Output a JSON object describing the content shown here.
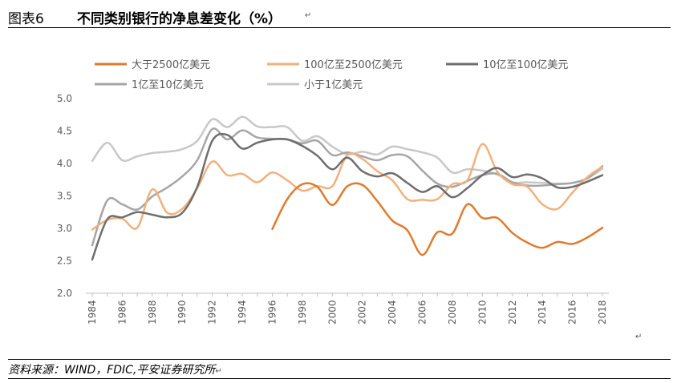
{
  "figure": {
    "label": "图表6",
    "title": "不同类别银行的净息差变化（%）",
    "source": "资料来源：WIND，FDIC,平安证券研究所",
    "para_mark": "↵"
  },
  "chart_data": {
    "type": "line",
    "title": "不同类别银行的净息差变化（%）",
    "xlabel": "",
    "ylabel": "",
    "xlim": [
      1984,
      2018
    ],
    "ylim": [
      2.0,
      5.0
    ],
    "yticks": [
      "2.0",
      "2.5",
      "3.0",
      "3.5",
      "4.0",
      "4.5",
      "5.0"
    ],
    "xticks": [
      "1984",
      "1986",
      "1988",
      "1990",
      "1992",
      "1994",
      "1996",
      "1998",
      "2000",
      "2002",
      "2004",
      "2006",
      "2008",
      "2010",
      "2012",
      "2014",
      "2016",
      "2018"
    ],
    "grid": false,
    "legend_position": "top",
    "series": [
      {
        "name": "大于2500亿美元",
        "color": "#E07B2E",
        "x": [
          1996,
          1997,
          1998,
          1999,
          2000,
          2001,
          2002,
          2003,
          2004,
          2005,
          2006,
          2007,
          2008,
          2009,
          2010,
          2011,
          2012,
          2013,
          2014,
          2015,
          2016,
          2017,
          2018
        ],
        "values": [
          2.99,
          3.45,
          3.68,
          3.64,
          3.36,
          3.65,
          3.67,
          3.42,
          3.12,
          2.97,
          2.59,
          2.94,
          2.92,
          3.37,
          3.16,
          3.16,
          2.93,
          2.78,
          2.7,
          2.79,
          2.76,
          2.86,
          3.01
        ]
      },
      {
        "name": "100亿至2500亿美元",
        "color": "#F2B07E",
        "x": [
          1984,
          1985,
          1986,
          1987,
          1988,
          1989,
          1990,
          1991,
          1992,
          1993,
          1994,
          1995,
          1996,
          1997,
          1998,
          1999,
          2000,
          2001,
          2002,
          2003,
          2004,
          2005,
          2006,
          2007,
          2008,
          2009,
          2010,
          2011,
          2012,
          2013,
          2014,
          2015,
          2016,
          2017,
          2018
        ],
        "values": [
          2.98,
          3.13,
          3.15,
          3.01,
          3.6,
          3.24,
          3.3,
          3.62,
          4.03,
          3.82,
          3.84,
          3.71,
          3.86,
          3.74,
          3.58,
          3.65,
          3.65,
          4.13,
          4.07,
          3.88,
          3.74,
          3.45,
          3.44,
          3.45,
          3.68,
          3.74,
          4.3,
          3.87,
          3.68,
          3.64,
          3.37,
          3.3,
          3.55,
          3.79,
          3.95
        ]
      },
      {
        "name": "10亿至100亿美元",
        "color": "#6E6E6E",
        "x": [
          1984,
          1985,
          1986,
          1987,
          1988,
          1989,
          1990,
          1991,
          1992,
          1993,
          1994,
          1995,
          1996,
          1997,
          1998,
          1999,
          2000,
          2001,
          2002,
          2003,
          2004,
          2005,
          2006,
          2007,
          2008,
          2009,
          2010,
          2011,
          2012,
          2013,
          2014,
          2015,
          2016,
          2017,
          2018
        ],
        "values": [
          2.52,
          3.14,
          3.17,
          3.25,
          3.21,
          3.17,
          3.24,
          3.64,
          4.35,
          4.44,
          4.23,
          4.32,
          4.37,
          4.37,
          4.27,
          4.12,
          3.91,
          4.09,
          3.88,
          3.8,
          3.85,
          3.7,
          3.56,
          3.65,
          3.48,
          3.62,
          3.82,
          3.93,
          3.79,
          3.83,
          3.77,
          3.63,
          3.64,
          3.72,
          3.82
        ]
      },
      {
        "name": "1亿至10亿美元",
        "color": "#A6A6A6",
        "x": [
          1984,
          1985,
          1986,
          1987,
          1988,
          1989,
          1990,
          1991,
          1992,
          1993,
          1994,
          1995,
          1996,
          1997,
          1998,
          1999,
          2000,
          2001,
          2002,
          2003,
          2004,
          2005,
          2006,
          2007,
          2008,
          2009,
          2010,
          2011,
          2012,
          2013,
          2014,
          2015,
          2016,
          2017,
          2018
        ],
        "values": [
          2.74,
          3.43,
          3.37,
          3.29,
          3.49,
          3.63,
          3.8,
          4.05,
          4.53,
          4.37,
          4.51,
          4.4,
          4.38,
          4.37,
          4.31,
          4.35,
          4.13,
          4.17,
          4.11,
          4.05,
          4.13,
          4.11,
          3.89,
          3.69,
          3.64,
          3.73,
          3.82,
          3.84,
          3.71,
          3.66,
          3.66,
          3.68,
          3.7,
          3.77,
          3.96
        ]
      },
      {
        "name": "小于1亿美元",
        "color": "#C8C8C8",
        "x": [
          1984,
          1985,
          1986,
          1987,
          1988,
          1989,
          1990,
          1991,
          1992,
          1993,
          1994,
          1995,
          1996,
          1997,
          1998,
          1999,
          2000,
          2001,
          2002,
          2003,
          2004,
          2005,
          2006,
          2007,
          2008,
          2009,
          2010,
          2011,
          2012,
          2013,
          2014,
          2015,
          2016,
          2017,
          2018
        ],
        "values": [
          4.04,
          4.32,
          4.05,
          4.11,
          4.16,
          4.18,
          4.22,
          4.35,
          4.68,
          4.56,
          4.72,
          4.57,
          4.56,
          4.56,
          4.35,
          4.42,
          4.26,
          4.14,
          4.18,
          4.14,
          4.26,
          4.22,
          4.17,
          4.09,
          3.86,
          3.91,
          3.89,
          3.83,
          3.71,
          3.71,
          3.7,
          3.69,
          3.7,
          3.77,
          3.92
        ]
      }
    ]
  }
}
